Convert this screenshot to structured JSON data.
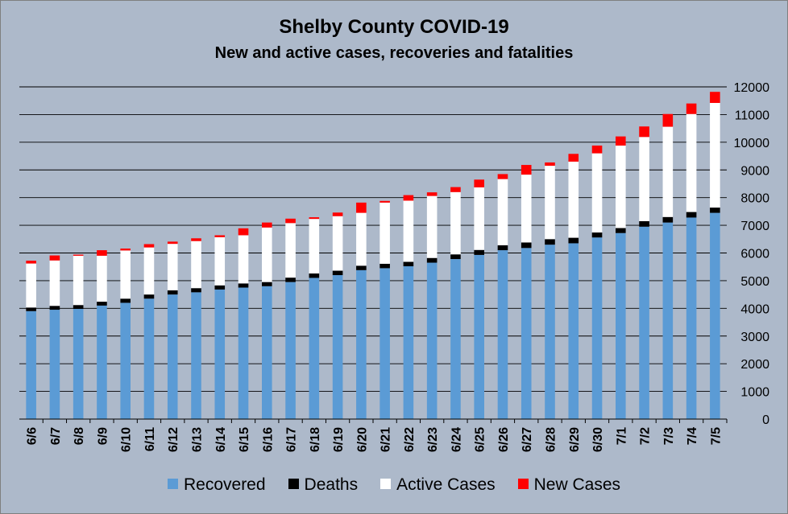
{
  "chart_data": {
    "type": "bar",
    "stacked": true,
    "title": "Shelby County COVID-19",
    "subtitle": "New and active cases, recoveries and fatalities",
    "xlabel": "",
    "ylabel": "",
    "ylim": [
      0,
      12000
    ],
    "yticks": [
      0,
      1000,
      2000,
      3000,
      4000,
      5000,
      6000,
      7000,
      8000,
      9000,
      10000,
      11000,
      12000
    ],
    "y_axis_side": "right",
    "grid": true,
    "legend_position": "bottom",
    "categories": [
      "6/6",
      "6/7",
      "6/8",
      "6/9",
      "6/10",
      "6/11",
      "6/12",
      "6/13",
      "6/14",
      "6/15",
      "6/16",
      "6/17",
      "6/18",
      "6/19",
      "6/20",
      "6/21",
      "6/22",
      "6/23",
      "6/24",
      "6/25",
      "6/26",
      "6/27",
      "6/28",
      "6/29",
      "6/30",
      "7/1",
      "7/2",
      "7/3",
      "7/4",
      "7/5"
    ],
    "series": [
      {
        "name": "Recovered",
        "color": "#5b9bd5",
        "values": [
          3900,
          3950,
          3980,
          4100,
          4200,
          4350,
          4500,
          4580,
          4680,
          4750,
          4800,
          4950,
          5100,
          5200,
          5380,
          5450,
          5520,
          5650,
          5780,
          5930,
          6100,
          6180,
          6300,
          6350,
          6560,
          6720,
          6950,
          7100,
          7280,
          7450
        ]
      },
      {
        "name": "Deaths",
        "color": "#000000",
        "values": [
          130,
          140,
          140,
          140,
          150,
          150,
          150,
          150,
          150,
          150,
          150,
          160,
          160,
          160,
          160,
          160,
          160,
          170,
          170,
          180,
          180,
          200,
          200,
          200,
          180,
          180,
          200,
          200,
          200,
          190
        ]
      },
      {
        "name": "Active Cases",
        "color": "#ffffff",
        "values": [
          1590,
          1640,
          1780,
          1660,
          1740,
          1700,
          1680,
          1700,
          1740,
          1740,
          1970,
          1970,
          1970,
          1970,
          1910,
          2210,
          2210,
          2240,
          2250,
          2260,
          2390,
          2450,
          2650,
          2750,
          2860,
          2980,
          3040,
          3260,
          3540,
          3780
        ]
      },
      {
        "name": "New Cases",
        "color": "#ff0000",
        "values": [
          100,
          180,
          40,
          200,
          70,
          120,
          80,
          100,
          70,
          250,
          180,
          160,
          60,
          130,
          370,
          60,
          200,
          130,
          180,
          280,
          180,
          350,
          120,
          280,
          280,
          330,
          380,
          460,
          380,
          400
        ]
      }
    ]
  }
}
